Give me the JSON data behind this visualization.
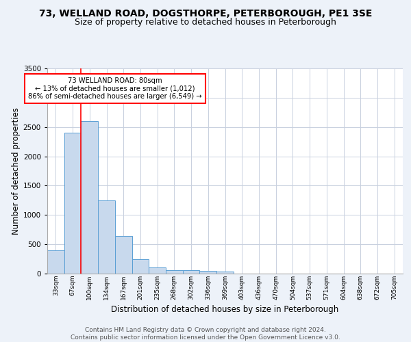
{
  "title1": "73, WELLAND ROAD, DOGSTHORPE, PETERBOROUGH, PE1 3SE",
  "title2": "Size of property relative to detached houses in Peterborough",
  "xlabel": "Distribution of detached houses by size in Peterborough",
  "ylabel": "Number of detached properties",
  "footer": "Contains HM Land Registry data © Crown copyright and database right 2024.\nContains public sector information licensed under the Open Government Licence v3.0.",
  "bins": [
    "33sqm",
    "67sqm",
    "100sqm",
    "134sqm",
    "167sqm",
    "201sqm",
    "235sqm",
    "268sqm",
    "302sqm",
    "336sqm",
    "369sqm",
    "403sqm",
    "436sqm",
    "470sqm",
    "504sqm",
    "537sqm",
    "571sqm",
    "604sqm",
    "638sqm",
    "672sqm",
    "705sqm"
  ],
  "values": [
    400,
    2400,
    2600,
    1250,
    640,
    250,
    100,
    60,
    55,
    45,
    35,
    0,
    0,
    0,
    0,
    0,
    0,
    0,
    0,
    0,
    0
  ],
  "bar_color": "#c8d9ed",
  "bar_edge_color": "#5a9fd4",
  "red_line_x": 1.5,
  "annotation_text": "73 WELLAND ROAD: 80sqm\n← 13% of detached houses are smaller (1,012)\n86% of semi-detached houses are larger (6,549) →",
  "annotation_box_color": "white",
  "annotation_box_edge": "red",
  "red_line_color": "red",
  "background_color": "#edf2f9",
  "plot_background": "white",
  "ylim": [
    0,
    3500
  ],
  "yticks": [
    0,
    500,
    1000,
    1500,
    2000,
    2500,
    3000,
    3500
  ],
  "title1_fontsize": 10,
  "title2_fontsize": 9,
  "xlabel_fontsize": 8.5,
  "ylabel_fontsize": 8.5,
  "footer_fontsize": 6.5,
  "grid_color": "#c8d0de"
}
